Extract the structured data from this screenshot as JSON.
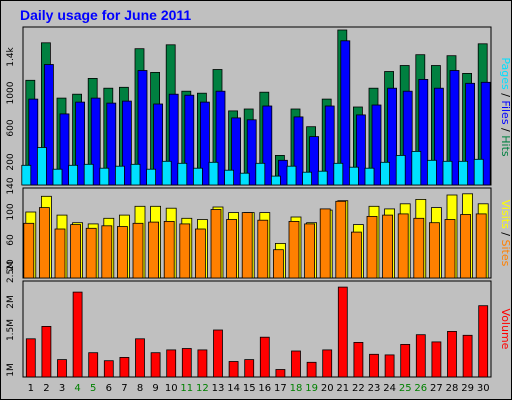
{
  "title": "Daily usage for June 2011",
  "colors": {
    "background": "#c0c0c0",
    "plot": "#c0c0c0",
    "title": "#0000ff",
    "hits": "#008040",
    "files": "#0000ff",
    "pages": "#00e0ff",
    "visits": "#ffff00",
    "sites": "#ff8000",
    "volume": "#ff0000",
    "weekend": "#008000",
    "slash": "#000000"
  },
  "chart_data": [
    {
      "type": "bar",
      "panel": "pages-files-hits",
      "ylabel_parts": [
        {
          "text": "Pages",
          "color_key": "pages"
        },
        {
          "text": " / ",
          "color_key": "slash"
        },
        {
          "text": "Files",
          "color_key": "files"
        },
        {
          "text": " / ",
          "color_key": "slash"
        },
        {
          "text": "Hits",
          "color_key": "hits"
        }
      ],
      "y_ticks": [
        "200",
        "600",
        "1000",
        "1.4k"
      ],
      "ylim": [
        0,
        1580
      ],
      "series": [
        {
          "name": "Hits",
          "color_key": "hits",
          "values": [
            1060,
            1440,
            880,
            920,
            1080,
            980,
            990,
            1380,
            1140,
            1420,
            950,
            930,
            1170,
            750,
            770,
            940,
            300,
            770,
            590,
            870,
            1570,
            790,
            980,
            1150,
            1210,
            1320,
            1210,
            1310,
            1130,
            1430
          ]
        },
        {
          "name": "Files",
          "color_key": "files",
          "values": [
            870,
            1220,
            720,
            840,
            880,
            830,
            850,
            1160,
            820,
            920,
            910,
            840,
            950,
            680,
            660,
            800,
            250,
            690,
            490,
            800,
            1460,
            710,
            810,
            980,
            950,
            1070,
            980,
            1160,
            1030,
            1040
          ]
        },
        {
          "name": "Pages",
          "color_key": "pages",
          "values": [
            200,
            380,
            160,
            200,
            210,
            170,
            190,
            210,
            160,
            240,
            220,
            170,
            230,
            150,
            120,
            220,
            90,
            190,
            130,
            140,
            220,
            180,
            170,
            230,
            300,
            340,
            250,
            240,
            240,
            260
          ]
        }
      ]
    },
    {
      "type": "bar",
      "panel": "visits-sites",
      "ylabel_parts": [
        {
          "text": "Visits",
          "color_key": "visits"
        },
        {
          "text": " / ",
          "color_key": "slash"
        },
        {
          "text": "Sites",
          "color_key": "sites"
        }
      ],
      "y_ticks": [
        "20",
        "60",
        "100",
        "140"
      ],
      "ylim": [
        0,
        140
      ],
      "series": [
        {
          "name": "Visits",
          "color_key": "visits",
          "values": [
            105,
            130,
            100,
            88,
            86,
            95,
            100,
            114,
            114,
            111,
            95,
            93,
            113,
            104,
            104,
            104,
            55,
            97,
            88,
            108,
            123,
            85,
            114,
            110,
            118,
            125,
            112,
            132,
            134,
            118
          ]
        },
        {
          "name": "Sites",
          "color_key": "sites",
          "values": [
            87,
            112,
            78,
            85,
            79,
            83,
            82,
            87,
            89,
            90,
            86,
            78,
            109,
            93,
            104,
            92,
            45,
            90,
            86,
            110,
            122,
            73,
            98,
            100,
            102,
            95,
            88,
            93,
            101,
            102
          ]
        }
      ]
    },
    {
      "type": "bar",
      "panel": "volume",
      "ylabel_parts": [
        {
          "text": "Volume",
          "color_key": "volume"
        }
      ],
      "y_ticks": [
        "1M",
        "1.5M",
        "2M",
        "2.5M"
      ],
      "ylim": [
        0,
        3400000
      ],
      "series": [
        {
          "name": "Volume",
          "color_key": "volume",
          "values": [
            1380000,
            1830000,
            630000,
            3070000,
            880000,
            590000,
            710000,
            1380000,
            880000,
            980000,
            1030000,
            980000,
            1700000,
            560000,
            630000,
            1440000,
            270000,
            940000,
            530000,
            980000,
            3250000,
            1250000,
            820000,
            800000,
            1180000,
            1530000,
            1270000,
            1650000,
            1510000,
            2580000
          ]
        }
      ]
    }
  ],
  "days": [
    "1",
    "2",
    "3",
    "4",
    "5",
    "6",
    "7",
    "8",
    "9",
    "10",
    "11",
    "12",
    "13",
    "14",
    "15",
    "16",
    "17",
    "18",
    "19",
    "20",
    "21",
    "22",
    "23",
    "24",
    "25",
    "26",
    "27",
    "28",
    "29",
    "30"
  ],
  "weekend_days": [
    "4",
    "5",
    "11",
    "12",
    "18",
    "19",
    "25",
    "26"
  ]
}
